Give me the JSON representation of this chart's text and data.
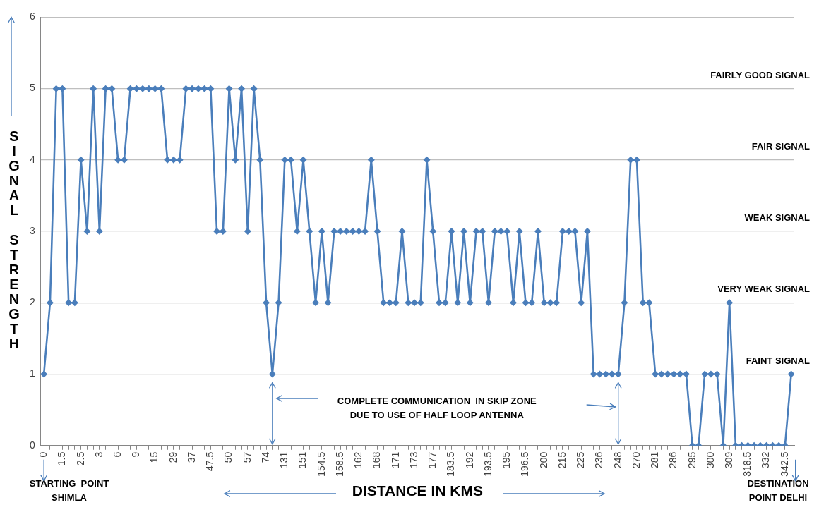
{
  "chart_data": {
    "type": "line",
    "xlabel": "DISTANCE IN KMS",
    "ylabel": "SIGNAL STRENGTH",
    "categories": [
      "0",
      null,
      null,
      "1.5",
      null,
      null,
      "2.5",
      null,
      null,
      "3",
      null,
      null,
      "6",
      null,
      null,
      "9",
      null,
      null,
      "15",
      null,
      null,
      "29",
      null,
      null,
      "37",
      null,
      null,
      "47.5",
      null,
      null,
      "50",
      null,
      null,
      "57",
      null,
      null,
      "74",
      null,
      null,
      "131",
      null,
      null,
      "151",
      null,
      null,
      "154.5",
      null,
      null,
      "158.5",
      null,
      null,
      "162",
      null,
      null,
      "168",
      null,
      null,
      "171",
      null,
      null,
      "173",
      null,
      null,
      "177",
      null,
      null,
      "183.5",
      null,
      null,
      "192",
      null,
      null,
      "193.5",
      null,
      null,
      "195",
      null,
      null,
      "196.5",
      null,
      null,
      "200",
      null,
      null,
      "215",
      null,
      null,
      "225",
      null,
      null,
      "236",
      null,
      null,
      "248",
      null,
      null,
      "270",
      null,
      null,
      "281",
      null,
      null,
      "286",
      null,
      null,
      "295",
      null,
      null,
      "300",
      null,
      null,
      "309",
      null,
      null,
      "318.5",
      null,
      null,
      "332",
      null,
      null,
      "342.5",
      null
    ],
    "series": [
      {
        "color": "#4a7ebb",
        "values": [
          1,
          2,
          5,
          5,
          2,
          2,
          4,
          3,
          5,
          3,
          5,
          5,
          4,
          4,
          5,
          5,
          5,
          5,
          5,
          5,
          4,
          4,
          4,
          5,
          5,
          5,
          5,
          5,
          3,
          3,
          5,
          4,
          5,
          3,
          5,
          4,
          2,
          1,
          2,
          4,
          4,
          3,
          4,
          3,
          2,
          3,
          2,
          3,
          3,
          3,
          3,
          3,
          3,
          4,
          3,
          2,
          2,
          2,
          3,
          2,
          2,
          2,
          4,
          3,
          2,
          2,
          3,
          2,
          3,
          2,
          3,
          3,
          2,
          3,
          3,
          3,
          2,
          3,
          2,
          2,
          3,
          2,
          2,
          2,
          3,
          3,
          3,
          2,
          3,
          1,
          1,
          1,
          1,
          1,
          2,
          4,
          4,
          2,
          2,
          1,
          1,
          1,
          1,
          1,
          1,
          0,
          0,
          1,
          1,
          1,
          0,
          2,
          0,
          0,
          0,
          0,
          0,
          0,
          0,
          0,
          0,
          1
        ]
      }
    ],
    "ylim": [
      0,
      6
    ],
    "yticks": [
      0,
      1,
      2,
      3,
      4,
      5,
      6
    ],
    "grid": "y",
    "marker": "diamond",
    "line_style": "solid",
    "legend": false,
    "annotations": [
      "FAIRLY GOOD SIGNAL",
      "FAIR SIGNAL",
      "WEAK SIGNAL",
      "VERY WEAK SIGNAL",
      "FAINT SIGNAL",
      "COMPLETE COMMUNICATION  IN SKIP ZONE\nDUE TO USE OF HALF LOOP ANTENNA",
      "STARTING  POINT\nSHIMLA",
      "DESTINATION\nPOINT DELHI"
    ]
  }
}
